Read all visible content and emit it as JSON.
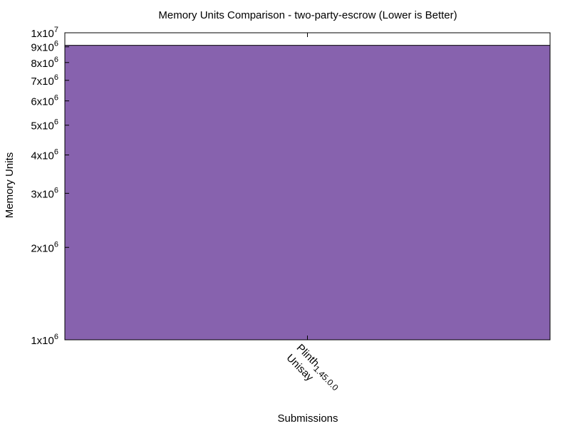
{
  "chart_data": {
    "type": "bar",
    "title": "Memory Units Comparison - two-party-escrow (Lower is Better)",
    "xlabel": "Submissions",
    "ylabel": "Memory Units",
    "yscale": "log",
    "ylim": [
      1000000,
      10000000
    ],
    "y_ticks": [
      {
        "value": 1000000,
        "mant": "1x10",
        "exp": "6"
      },
      {
        "value": 2000000,
        "mant": "2x10",
        "exp": "6"
      },
      {
        "value": 3000000,
        "mant": "3x10",
        "exp": "6"
      },
      {
        "value": 4000000,
        "mant": "4x10",
        "exp": "6"
      },
      {
        "value": 5000000,
        "mant": "5x10",
        "exp": "6"
      },
      {
        "value": 6000000,
        "mant": "6x10",
        "exp": "6"
      },
      {
        "value": 7000000,
        "mant": "7x10",
        "exp": "6"
      },
      {
        "value": 8000000,
        "mant": "8x10",
        "exp": "6"
      },
      {
        "value": 9000000,
        "mant": "9x10",
        "exp": "6"
      },
      {
        "value": 10000000,
        "mant": "1x10",
        "exp": "7"
      }
    ],
    "categories": [
      {
        "line1": "Plinth_1.45.0.0",
        "line1_main": "Plinth",
        "line1_sub": "1.45.0.0",
        "line2": "Unisay"
      }
    ],
    "values": [
      9100000
    ],
    "bar_color": "#8762ae",
    "grid": false,
    "legend": false
  }
}
